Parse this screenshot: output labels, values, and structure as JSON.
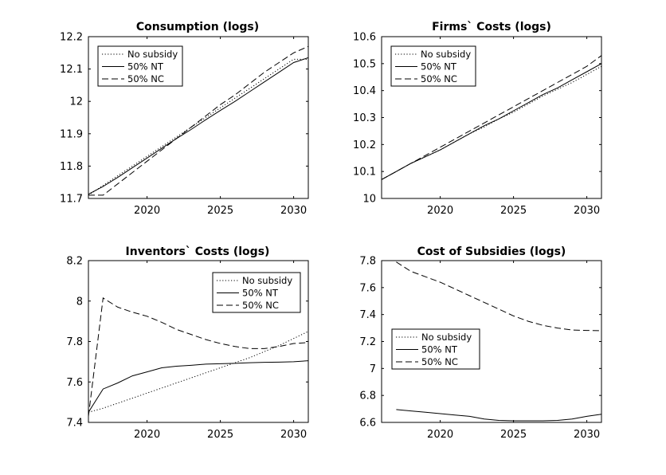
{
  "chart_data": [
    {
      "type": "line",
      "title": "Consumption (logs)",
      "xlabel": "",
      "ylabel": "",
      "xlim": [
        2016,
        2031
      ],
      "ylim": [
        11.7,
        12.2
      ],
      "xticks": [
        2020,
        2025,
        2030
      ],
      "yticks": [
        11.7,
        11.8,
        11.9,
        12,
        12.1,
        12.2
      ],
      "xtick_labels": [
        "2020",
        "2025",
        "2030"
      ],
      "ytick_labels": [
        "11.7",
        "11.8",
        "11.9",
        "12",
        "12.1",
        "12.2"
      ],
      "legend_position": "top-left",
      "series": [
        {
          "name": "No subsidy",
          "style": "dotted",
          "x": [
            2016,
            2017,
            2018,
            2019,
            2020,
            2021,
            2022,
            2023,
            2024,
            2025,
            2026,
            2027,
            2028,
            2029,
            2030,
            2031
          ],
          "y": [
            11.71,
            11.74,
            11.77,
            11.8,
            11.83,
            11.86,
            11.89,
            11.92,
            11.95,
            11.98,
            12.01,
            12.04,
            12.07,
            12.1,
            12.13,
            12.13
          ]
        },
        {
          "name": "50% NT",
          "style": "solid",
          "x": [
            2016,
            2017,
            2018,
            2019,
            2020,
            2021,
            2022,
            2023,
            2024,
            2025,
            2026,
            2027,
            2028,
            2029,
            2030,
            2031
          ],
          "y": [
            11.713,
            11.737,
            11.765,
            11.795,
            11.825,
            11.855,
            11.885,
            11.913,
            11.943,
            11.972,
            12.0,
            12.03,
            12.06,
            12.09,
            12.12,
            12.135
          ]
        },
        {
          "name": "50% NC",
          "style": "dashed",
          "x": [
            2016,
            2017,
            2018,
            2019,
            2020,
            2021,
            2022,
            2023,
            2024,
            2025,
            2026,
            2027,
            2028,
            2029,
            2030,
            2031
          ],
          "y": [
            11.71,
            11.71,
            11.745,
            11.78,
            11.815,
            11.85,
            11.885,
            11.92,
            11.955,
            11.99,
            12.02,
            12.055,
            12.09,
            12.12,
            12.15,
            12.17
          ]
        }
      ]
    },
    {
      "type": "line",
      "title": "Firms` Costs (logs)",
      "xlabel": "",
      "ylabel": "",
      "xlim": [
        2016,
        2031
      ],
      "ylim": [
        10,
        10.6
      ],
      "xticks": [
        2020,
        2025,
        2030
      ],
      "yticks": [
        10,
        10.1,
        10.2,
        10.3,
        10.4,
        10.5,
        10.6
      ],
      "xtick_labels": [
        "2020",
        "2025",
        "2030"
      ],
      "ytick_labels": [
        "10",
        "10.1",
        "10.2",
        "10.3",
        "10.4",
        "10.5",
        "10.6"
      ],
      "legend_position": "top-left",
      "series": [
        {
          "name": "No subsidy",
          "style": "dotted",
          "x": [
            2016,
            2017,
            2018,
            2019,
            2020,
            2021,
            2022,
            2023,
            2024,
            2025,
            2026,
            2027,
            2028,
            2029,
            2030,
            2031
          ],
          "y": [
            10.07,
            10.1,
            10.13,
            10.155,
            10.18,
            10.21,
            10.24,
            10.265,
            10.295,
            10.32,
            10.35,
            10.38,
            10.405,
            10.43,
            10.46,
            10.49
          ]
        },
        {
          "name": "50% NT",
          "style": "solid",
          "x": [
            2016,
            2017,
            2018,
            2019,
            2020,
            2021,
            2022,
            2023,
            2024,
            2025,
            2026,
            2027,
            2028,
            2029,
            2030,
            2031
          ],
          "y": [
            10.07,
            10.1,
            10.13,
            10.155,
            10.18,
            10.21,
            10.24,
            10.27,
            10.295,
            10.325,
            10.355,
            10.385,
            10.41,
            10.44,
            10.47,
            10.5
          ]
        },
        {
          "name": "50% NC",
          "style": "dashed",
          "x": [
            2016,
            2017,
            2018,
            2019,
            2020,
            2021,
            2022,
            2023,
            2024,
            2025,
            2026,
            2027,
            2028,
            2029,
            2030,
            2031
          ],
          "y": [
            10.07,
            10.1,
            10.13,
            10.16,
            10.19,
            10.22,
            10.25,
            10.28,
            10.31,
            10.34,
            10.37,
            10.4,
            10.43,
            10.46,
            10.49,
            10.53
          ]
        }
      ]
    },
    {
      "type": "line",
      "title": "Inventors` Costs (logs)",
      "xlabel": "",
      "ylabel": "",
      "xlim": [
        2016,
        2031
      ],
      "ylim": [
        7.4,
        8.2
      ],
      "xticks": [
        2020,
        2025,
        2030
      ],
      "yticks": [
        7.4,
        7.6,
        7.8,
        8,
        8.2
      ],
      "xtick_labels": [
        "2020",
        "2025",
        "2030"
      ],
      "ytick_labels": [
        "7.4",
        "7.6",
        "7.8",
        "8",
        "8.2"
      ],
      "legend_position": "top-right",
      "series": [
        {
          "name": "No subsidy",
          "style": "dotted",
          "x": [
            2016,
            2017,
            2018,
            2019,
            2020,
            2021,
            2022,
            2023,
            2024,
            2025,
            2026,
            2027,
            2028,
            2029,
            2030,
            2031
          ],
          "y": [
            7.45,
            7.47,
            7.495,
            7.52,
            7.545,
            7.57,
            7.595,
            7.62,
            7.645,
            7.67,
            7.695,
            7.72,
            7.75,
            7.78,
            7.815,
            7.85
          ]
        },
        {
          "name": "50% NT",
          "style": "solid",
          "x": [
            2016,
            2017,
            2018,
            2019,
            2020,
            2021,
            2022,
            2023,
            2024,
            2025,
            2026,
            2027,
            2028,
            2029,
            2030,
            2031
          ],
          "y": [
            7.45,
            7.565,
            7.595,
            7.63,
            7.65,
            7.67,
            7.678,
            7.682,
            7.688,
            7.69,
            7.692,
            7.695,
            7.697,
            7.698,
            7.7,
            7.705
          ]
        },
        {
          "name": "50% NC",
          "style": "dashed",
          "x": [
            2016,
            2017,
            2018,
            2019,
            2020,
            2021,
            2022,
            2023,
            2024,
            2025,
            2026,
            2027,
            2028,
            2029,
            2030,
            2031
          ],
          "y": [
            7.43,
            8.015,
            7.97,
            7.945,
            7.925,
            7.895,
            7.86,
            7.835,
            7.81,
            7.79,
            7.775,
            7.765,
            7.765,
            7.775,
            7.79,
            7.795
          ]
        }
      ]
    },
    {
      "type": "line",
      "title": "Cost of Subsidies (logs)",
      "xlabel": "",
      "ylabel": "",
      "xlim": [
        2016,
        2031
      ],
      "ylim": [
        6.6,
        7.8
      ],
      "xticks": [
        2020,
        2025,
        2030
      ],
      "yticks": [
        6.6,
        6.8,
        7,
        7.2,
        7.4,
        7.6,
        7.8
      ],
      "xtick_labels": [
        "2020",
        "2025",
        "2030"
      ],
      "ytick_labels": [
        "6.6",
        "6.8",
        "7",
        "7.2",
        "7.4",
        "7.6",
        "7.8"
      ],
      "legend_position": "center-left",
      "series": [
        {
          "name": "No subsidy",
          "style": "dotted",
          "x": [],
          "y": []
        },
        {
          "name": "50% NT",
          "style": "solid",
          "x": [
            2017,
            2018,
            2019,
            2020,
            2021,
            2022,
            2023,
            2024,
            2025,
            2026,
            2027,
            2028,
            2029,
            2030,
            2031
          ],
          "y": [
            6.695,
            6.685,
            6.675,
            6.665,
            6.655,
            6.645,
            6.625,
            6.615,
            6.612,
            6.612,
            6.612,
            6.615,
            6.625,
            6.645,
            6.66
          ]
        },
        {
          "name": "50% NC",
          "style": "dashed",
          "x": [
            2017,
            2018,
            2019,
            2020,
            2021,
            2022,
            2023,
            2024,
            2025,
            2026,
            2027,
            2028,
            2029,
            2030,
            2031
          ],
          "y": [
            7.79,
            7.72,
            7.68,
            7.64,
            7.59,
            7.54,
            7.49,
            7.44,
            7.39,
            7.35,
            7.32,
            7.3,
            7.285,
            7.282,
            7.28
          ]
        }
      ]
    }
  ]
}
